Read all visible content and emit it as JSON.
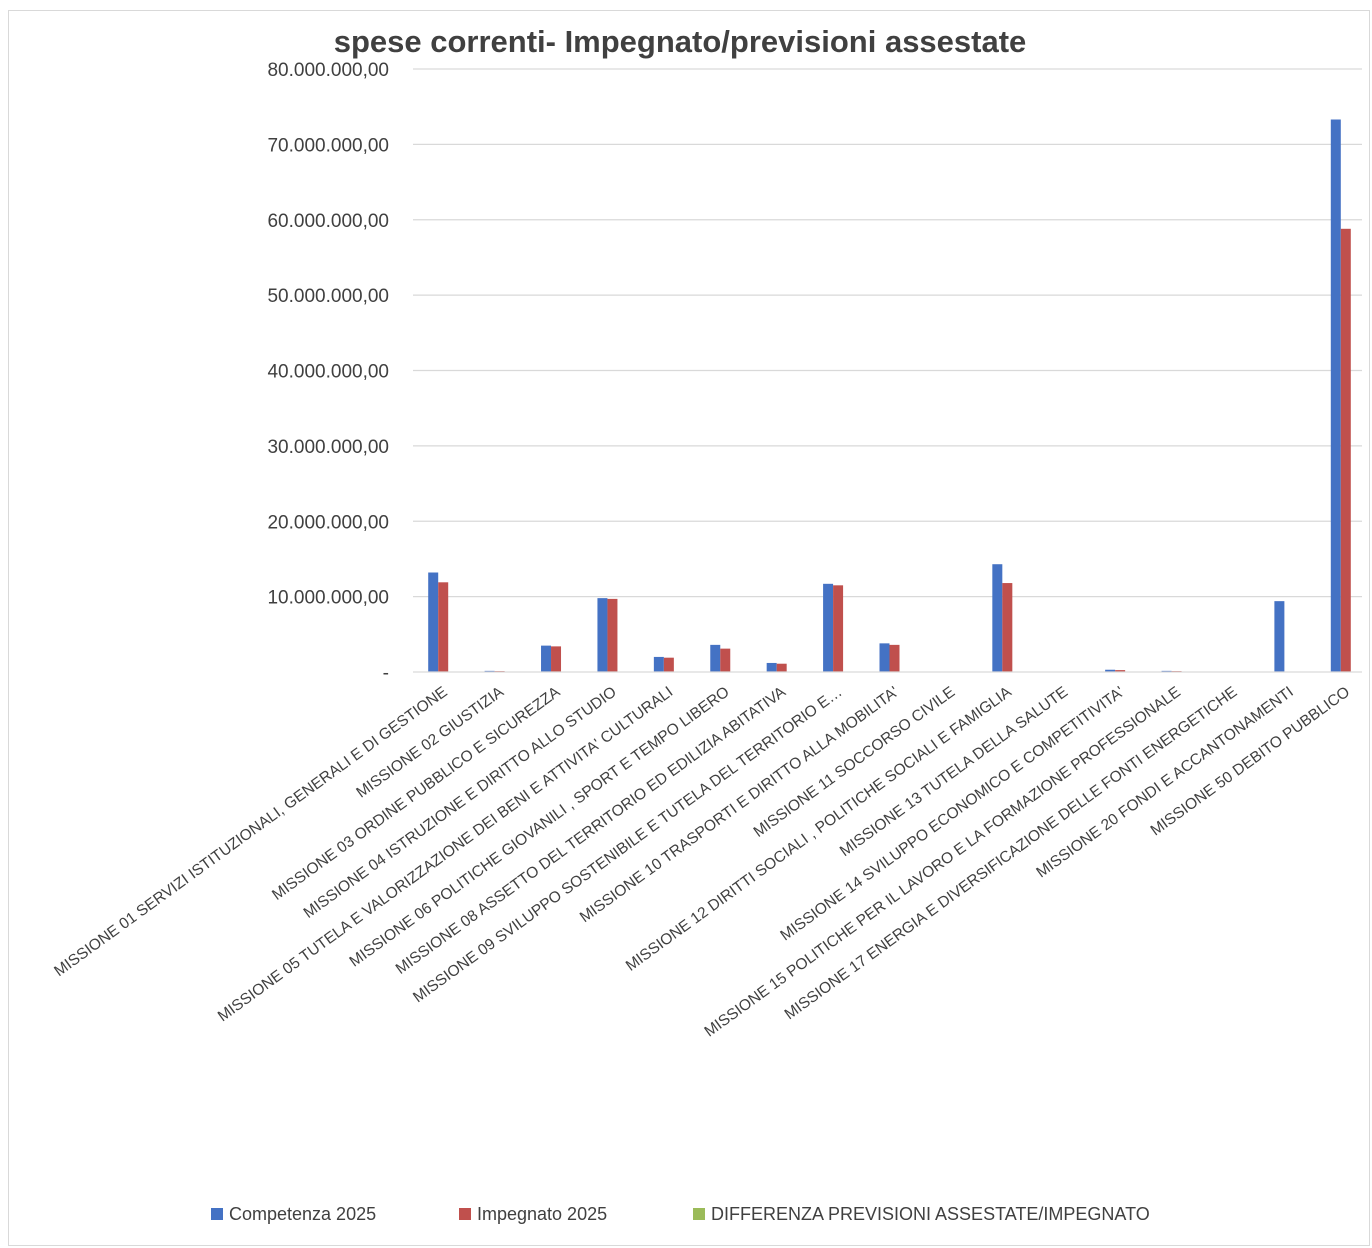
{
  "chart_data": {
    "type": "bar",
    "title": "spese correnti- Impegnato/previsioni assestate",
    "xlabel": "",
    "ylabel": "",
    "ylim": [
      0,
      80000000
    ],
    "yticks": [
      {
        "value": 0,
        "label": "-"
      },
      {
        "value": 10000000,
        "label": "10.000.000,00"
      },
      {
        "value": 20000000,
        "label": "20.000.000,00"
      },
      {
        "value": 30000000,
        "label": "30.000.000,00"
      },
      {
        "value": 40000000,
        "label": "40.000.000,00"
      },
      {
        "value": 50000000,
        "label": "50.000.000,00"
      },
      {
        "value": 60000000,
        "label": "60.000.000,00"
      },
      {
        "value": 70000000,
        "label": "70.000.000,00"
      },
      {
        "value": 80000000,
        "label": "80.000.000,00"
      }
    ],
    "grid": true,
    "legend_position": "bottom",
    "categories": [
      "MISSIONE 01 SERVIZI ISTITUZIONALI, GENERALI E DI GESTIONE",
      "MISSIONE 02 GIUSTIZIA",
      "MISSIONE 03 ORDINE PUBBLICO E SICUREZZA",
      "MISSIONE 04 ISTRUZIONE E DIRITTO ALLO STUDIO",
      "MISSIONE 05 TUTELA E VALORIZZAZIONE DEI BENI E ATTIVITA' CULTURALI",
      "MISSIONE 06 POLITICHE GIOVANILI , SPORT E TEMPO LIBERO",
      "MISSIONE 08 ASSETTO DEL TERRITORIO ED EDILIZIA ABITATIVA",
      "MISSIONE 09 SVILUPPO SOSTENIBILE E TUTELA DEL TERRITORIO E…",
      "MISSIONE 10 TRASPORTI E DIRITTO ALLA MOBILITA'",
      "MISSIONE 11 SOCCORSO CIVILE",
      "MISSIONE 12 DIRITTI SOCIALI , POLITICHE SOCIALI E FAMIGLIA",
      "MISSIONE 13 TUTELA DELLA SALUTE",
      "MISSIONE 14 SVILUPPO ECONOMICO E COMPETITIVITA'",
      "MISSIONE 15 POLITICHE PER IL LAVORO E LA FORMAZIONE PROFESSIONALE",
      "MISSIONE 17 ENERGIA E DIVERSIFICAZIONE DELLE FONTI ENERGETICHE",
      "MISSIONE 20 FONDI E ACCANTONAMENTI",
      "MISSIONE 50 DEBITO PUBBLICO"
    ],
    "series": [
      {
        "name": "Competenza 2025",
        "color": "#4472c4",
        "values": [
          13200000,
          150000,
          3500000,
          9800000,
          2000000,
          3600000,
          1200000,
          11700000,
          3800000,
          0,
          14300000,
          0,
          300000,
          150000,
          0,
          9400000,
          73300000
        ]
      },
      {
        "name": "Impegnato 2025",
        "color": "#c0504d",
        "values": [
          11900000,
          120000,
          3400000,
          9700000,
          1900000,
          3100000,
          1100000,
          11500000,
          3600000,
          0,
          11800000,
          0,
          250000,
          120000,
          0,
          0,
          58800000
        ]
      },
      {
        "name": "DIFFERENZA PREVISIONI ASSESTATE/IMPEGNATO",
        "color": "#9bbb59",
        "values": [
          0,
          0,
          0,
          0,
          0,
          0,
          0,
          0,
          0,
          0,
          0,
          0,
          0,
          0,
          0,
          0,
          0
        ]
      }
    ]
  }
}
